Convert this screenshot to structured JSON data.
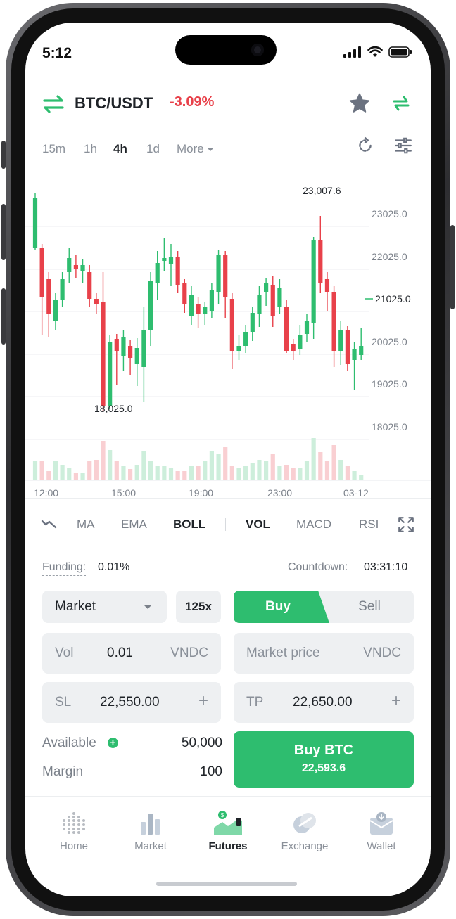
{
  "status_bar": {
    "time": "5:12"
  },
  "header": {
    "pair": "BTC/USDT",
    "change": "-3.09%"
  },
  "timeframes": {
    "items": [
      "15m",
      "1h",
      "4h",
      "1d"
    ],
    "active": "4h",
    "more_label": "More"
  },
  "chart": {
    "annotations": {
      "high": "23,007.6",
      "low": "18,025.0"
    },
    "price_axis": [
      "23025.0",
      "22025.0",
      "21025.0",
      "20025.0",
      "19025.0",
      "18025.0"
    ],
    "time_axis": [
      "12:00",
      "15:00",
      "19:00",
      "23:00",
      "03-12"
    ],
    "colors": {
      "up": "#2ebd6f",
      "down": "#e8414a"
    }
  },
  "indicators": {
    "main": [
      "MA",
      "EMA",
      "BOLL"
    ],
    "main_active": "BOLL",
    "sub": [
      "VOL",
      "MACD",
      "RSI"
    ],
    "sub_active": "VOL"
  },
  "funding": {
    "label": "Funding:",
    "value": "0.01%",
    "countdown_label": "Countdown:",
    "countdown_value": "03:31:10"
  },
  "order": {
    "type": "Market",
    "leverage": "125x",
    "buy_label": "Buy",
    "sell_label": "Sell",
    "vol": {
      "label": "Vol",
      "value": "0.01",
      "unit": "VNDC"
    },
    "price": {
      "label": "Market price",
      "unit": "VNDC"
    },
    "sl": {
      "label": "SL",
      "value": "22,550.00"
    },
    "tp": {
      "label": "TP",
      "value": "22,650.00"
    },
    "available_label": "Available",
    "available_value": "50,000",
    "margin_label": "Margin",
    "margin_value": "100",
    "submit_label": "Buy BTC",
    "submit_price": "22,593.6"
  },
  "nav": [
    {
      "label": "Home",
      "icon": "home-dots-icon"
    },
    {
      "label": "Market",
      "icon": "market-bars-icon"
    },
    {
      "label": "Futures",
      "icon": "futures-icon",
      "active": true
    },
    {
      "label": "Exchange",
      "icon": "exchange-icon"
    },
    {
      "label": "Wallet",
      "icon": "wallet-icon"
    }
  ]
}
